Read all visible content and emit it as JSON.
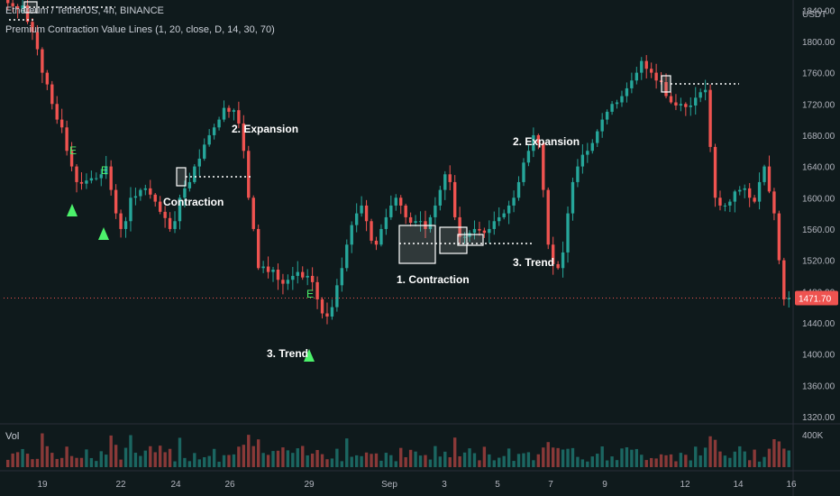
{
  "chart_data": {
    "type": "candlestick",
    "title": "Ethereum / TetherUS, 4h, BINANCE",
    "indicator": "Premium Contraction Value Lines (1, 20, close, D, 14, 30, 70)",
    "price_axis_unit": "USDT",
    "price_ticks": [
      "1840.00",
      "1800.00",
      "1760.00",
      "1720.00",
      "1680.00",
      "1640.00",
      "1600.00",
      "1560.00",
      "1520.00",
      "1480.00",
      "1440.00",
      "1400.00",
      "1360.00",
      "1320.00"
    ],
    "ylim": [
      1313,
      1853
    ],
    "last_price": "1471.70",
    "volume_label": "Vol",
    "volume_tick": "400K",
    "time_ticks": [
      "19",
      "22",
      "24",
      "26",
      "29",
      "Sep",
      "3",
      "5",
      "7",
      "9",
      "12",
      "14",
      "16"
    ],
    "annotations": [
      "2. Expansion",
      "Contraction",
      "1. Contraction",
      "2. Expansion",
      "3. Trend",
      "3. Trend"
    ],
    "signal_labels": [
      "E",
      "E",
      "E"
    ],
    "colors": {
      "up": "#26a69a",
      "down": "#ef5350",
      "background": "#0f1a1c",
      "signal": "#4cf26b",
      "text": "#ffffff",
      "axis_text": "#b2b5be",
      "last_price_bg": "#ef5350"
    },
    "candles_close_approx": [
      1849,
      1845,
      1842,
      1846,
      1825,
      1812,
      1790,
      1760,
      1745,
      1720,
      1700,
      1690,
      1660,
      1640,
      1620,
      1618,
      1622,
      1625,
      1625,
      1630,
      1640,
      1610,
      1580,
      1560,
      1570,
      1600,
      1602,
      1610,
      1612,
      1604,
      1595,
      1582,
      1574,
      1560,
      1570,
      1600,
      1612,
      1620,
      1640,
      1650,
      1668,
      1680,
      1690,
      1700,
      1715,
      1710,
      1712,
      1695,
      1660,
      1600,
      1560,
      1510,
      1512,
      1505,
      1508,
      1495,
      1490,
      1495,
      1500,
      1505,
      1498,
      1500,
      1492,
      1470,
      1452,
      1448,
      1460,
      1488,
      1510,
      1540,
      1565,
      1580,
      1590,
      1570,
      1545,
      1540,
      1560,
      1575,
      1590,
      1600,
      1590,
      1575,
      1568,
      1570,
      1570,
      1560,
      1575,
      1590,
      1610,
      1630,
      1620,
      1575,
      1550,
      1550,
      1555,
      1560,
      1558,
      1555,
      1560,
      1570,
      1575,
      1580,
      1590,
      1600,
      1620,
      1645,
      1660,
      1680,
      1670,
      1610,
      1540,
      1515,
      1510,
      1530,
      1580,
      1620,
      1640,
      1655,
      1660,
      1670,
      1685,
      1700,
      1710,
      1720,
      1722,
      1730,
      1740,
      1750,
      1760,
      1775,
      1765,
      1760,
      1750,
      1748,
      1730,
      1722,
      1718,
      1720,
      1716,
      1718,
      1728,
      1735,
      1738,
      1665,
      1600,
      1590,
      1590,
      1595,
      1608,
      1610,
      1612,
      1600,
      1595,
      1620,
      1640,
      1608,
      1580,
      1520,
      1470,
      1471.7
    ]
  }
}
